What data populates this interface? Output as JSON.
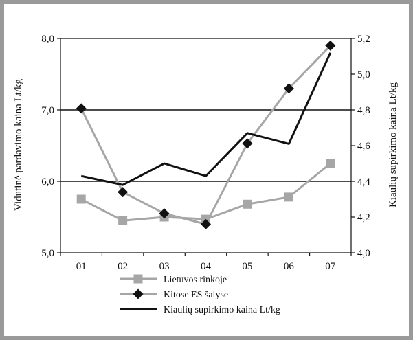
{
  "chart_data": {
    "type": "line",
    "title": "",
    "categories": [
      "01",
      "02",
      "03",
      "04",
      "05",
      "06",
      "07"
    ],
    "y_left": {
      "label": "Vidutinė pardavimo kaina Lt/kg",
      "range": [
        5.0,
        8.0
      ],
      "ticks": [
        "5,0",
        "6,0",
        "7,0",
        "8,0"
      ],
      "tick_values": [
        5.0,
        6.0,
        7.0,
        8.0
      ]
    },
    "y_right": {
      "label": "Kiaulių supirkimo kaina Lt/kg",
      "range": [
        4.0,
        5.2
      ],
      "ticks": [
        "4,0",
        "4,2",
        "4,4",
        "4,6",
        "4,8",
        "5,0",
        "5,2"
      ],
      "tick_values": [
        4.0,
        4.2,
        4.4,
        4.6,
        4.8,
        5.0,
        5.2
      ]
    },
    "gridlines_left": [
      6.0,
      7.0
    ],
    "legend_position": "bottom",
    "series": [
      {
        "name": "Lietuvos rinkoje",
        "axis": "left",
        "marker": "square",
        "color": "#a6a6a6",
        "values": [
          5.75,
          5.45,
          5.5,
          5.47,
          5.68,
          5.78,
          6.25
        ]
      },
      {
        "name": "Kitose ES šalyse",
        "axis": "left",
        "marker": "diamond",
        "color": "#a6a6a6",
        "marker_color": "#111111",
        "values": [
          7.02,
          5.85,
          5.55,
          5.4,
          6.53,
          7.3,
          7.9
        ]
      },
      {
        "name": "Kiaulių supirkimo kaina Lt/kg",
        "axis": "right",
        "marker": "none",
        "color": "#111111",
        "values": [
          4.43,
          4.38,
          4.5,
          4.43,
          4.67,
          4.61,
          5.12
        ]
      }
    ]
  }
}
